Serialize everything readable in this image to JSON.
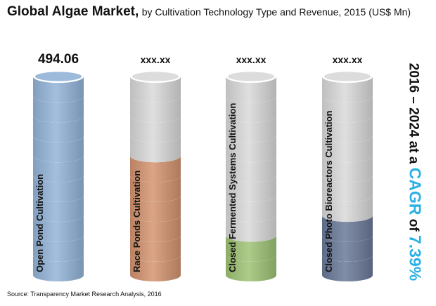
{
  "title": {
    "main": "Global Algae Market,",
    "subtitle": "by Cultivation Technology Type and Revenue, 2015 (US$ Mn)"
  },
  "chart_data": {
    "type": "bar",
    "title": "Global Algae Market, by Cultivation Technology Type and Revenue, 2015 (US$ Mn)",
    "categories": [
      "Open Pond Cultivation",
      "Race Ponds Cultivation",
      "Closed Fermented Systems Cultivation",
      "Closed Photo Bioreactors Cultivation"
    ],
    "values": [
      494.06,
      null,
      null,
      null
    ],
    "value_labels": [
      "494.06",
      "xxx.xx",
      "xxx.xx",
      "xxx.xx"
    ],
    "fill_fraction": [
      1.0,
      0.565,
      0.225,
      0.265
    ],
    "colors": [
      "#94b4d8",
      "#d39470",
      "#9fc375",
      "#6b7a99"
    ],
    "empty_color": "#d9d9d9",
    "xlabel": "",
    "ylabel": "",
    "legend": "none",
    "grid": false
  },
  "cagr": {
    "prefix": "2016 – 2024 at a",
    "highlight": "CAGR",
    "mid": "of",
    "value": "7.39%"
  },
  "source": "Source: Transparency Market Research Analysis, 2016"
}
